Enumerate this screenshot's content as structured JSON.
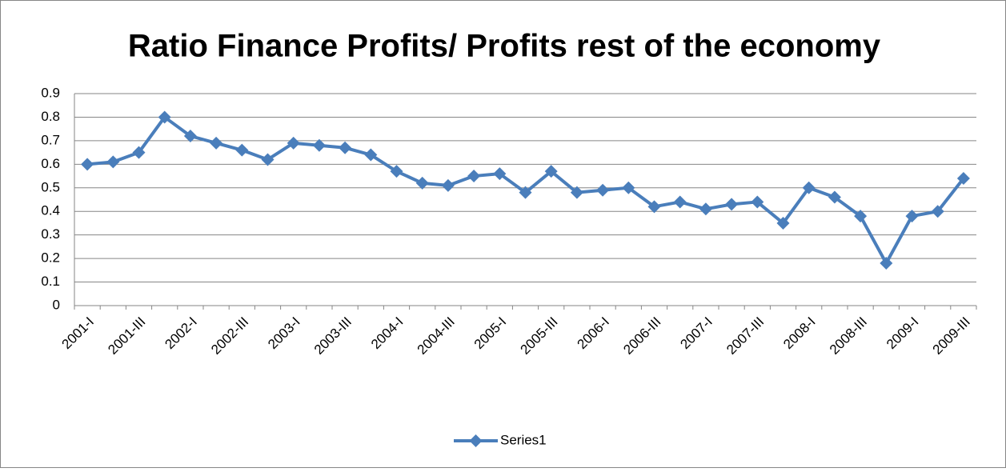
{
  "chart_data": {
    "type": "line",
    "title": "Ratio Finance Profits/ Profits rest of the economy",
    "categories": [
      "2001-I",
      null,
      "2001-III",
      null,
      "2002-I",
      null,
      "2002-III",
      null,
      "2003-I",
      null,
      "2003-III",
      null,
      "2004-I",
      null,
      "2004-III",
      null,
      "2005-I",
      null,
      "2005-III",
      null,
      "2006-I",
      null,
      "2006-III",
      null,
      "2007-I",
      null,
      "2007-III",
      null,
      "2008-I",
      null,
      "2008-III",
      null,
      "2009-I",
      null,
      "2009-III"
    ],
    "series": [
      {
        "name": "Series1",
        "color": "#4a7ebb",
        "values": [
          0.6,
          0.61,
          0.65,
          0.8,
          0.72,
          0.69,
          0.66,
          0.62,
          0.69,
          0.68,
          0.67,
          0.64,
          0.57,
          0.52,
          0.51,
          0.55,
          0.56,
          0.48,
          0.57,
          0.48,
          0.49,
          0.5,
          0.42,
          0.44,
          0.41,
          0.43,
          0.44,
          0.35,
          0.5,
          0.46,
          0.38,
          0.18,
          0.38,
          0.4,
          0.54
        ]
      }
    ],
    "ylim": [
      0,
      0.9
    ],
    "yticks": [
      0,
      0.1,
      0.2,
      0.3,
      0.4,
      0.5,
      0.6,
      0.7,
      0.8,
      0.9
    ],
    "grid": true,
    "legend": "bottom"
  }
}
